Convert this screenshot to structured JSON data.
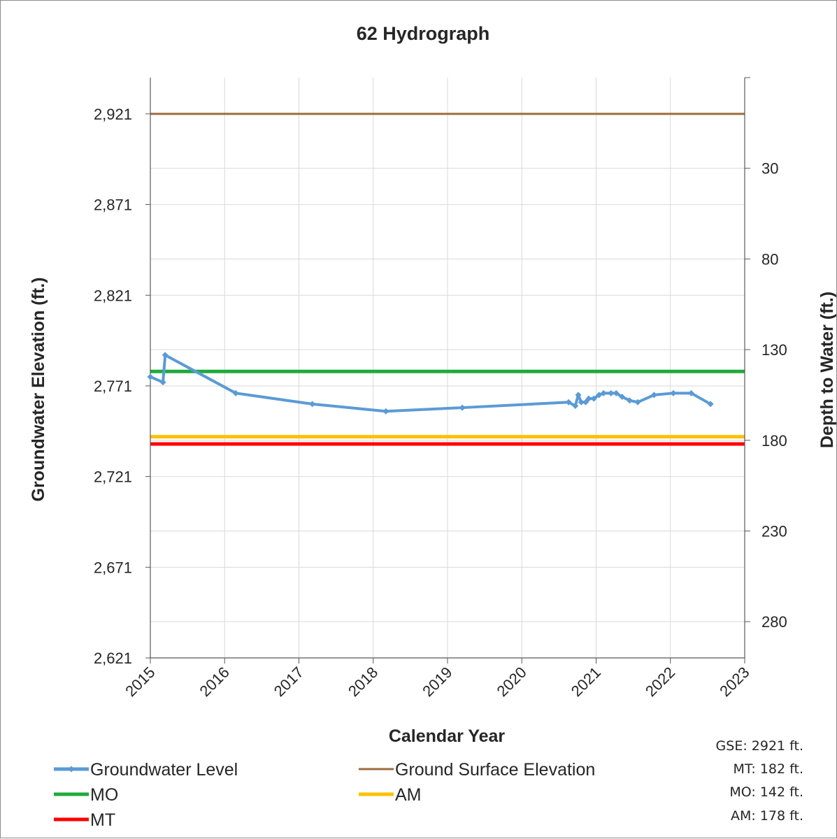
{
  "chart_data": {
    "type": "line",
    "title": "62 Hydrograph",
    "xlabel": "Calendar Year",
    "ylabel": "Groundwater Elevation (ft.)",
    "y2label": "Depth to Water (ft.)",
    "xlim": [
      2015,
      2023
    ],
    "xticks": [
      "2015",
      "2016",
      "2017",
      "2018",
      "2019",
      "2020",
      "2021",
      "2022",
      "2023"
    ],
    "ylim": [
      2621,
      2941
    ],
    "yticks": [
      "2,621",
      "2,671",
      "2,721",
      "2,771",
      "2,821",
      "2,871",
      "2,921"
    ],
    "y2ticks": [
      "30",
      "80",
      "130",
      "180",
      "230",
      "280"
    ],
    "grid": true,
    "legend_position": "bottom",
    "series": [
      {
        "name": "Groundwater Level",
        "color": "#5B9BD5",
        "marker": "diamond",
        "x": [
          2015.0,
          2015.17,
          2015.2,
          2016.15,
          2017.18,
          2018.17,
          2019.2,
          2020.63,
          2020.72,
          2020.76,
          2020.8,
          2020.86,
          2020.9,
          2020.97,
          2021.04,
          2021.1,
          2021.2,
          2021.27,
          2021.35,
          2021.45,
          2021.56,
          2021.78,
          2022.04,
          2022.28,
          2022.54
        ],
        "y": [
          2776,
          2773,
          2788,
          2767,
          2761,
          2757,
          2759,
          2762,
          2760,
          2766,
          2762,
          2762,
          2764,
          2764,
          2766,
          2767,
          2767,
          2767,
          2765,
          2763,
          2762,
          2766,
          2767,
          2767,
          2761
        ]
      },
      {
        "name": "Ground Surface Elevation",
        "color": "#9E6B3A",
        "x": [
          2015,
          2023
        ],
        "y": [
          2921,
          2921
        ]
      },
      {
        "name": "MO",
        "color": "#1FAA3A",
        "x": [
          2015,
          2023
        ],
        "y": [
          2779,
          2779
        ]
      },
      {
        "name": "AM",
        "color": "#FFC000",
        "x": [
          2015,
          2023
        ],
        "y": [
          2743,
          2743
        ]
      },
      {
        "name": "MT",
        "color": "#FF0000",
        "x": [
          2015,
          2023
        ],
        "y": [
          2739,
          2739
        ]
      }
    ],
    "notes": [
      "GSE: 2921 ft.",
      "MT: 182 ft.",
      "MO: 142 ft.",
      "AM: 178 ft."
    ]
  }
}
